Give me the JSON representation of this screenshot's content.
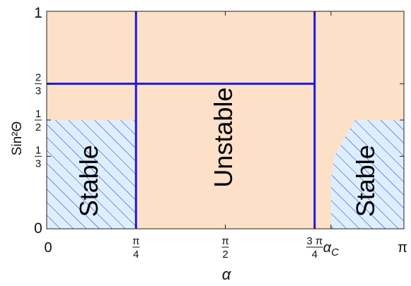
{
  "chart_data": {
    "type": "area",
    "title": "",
    "xlabel": "α",
    "ylabel": "Sin²Θ",
    "xlim": [
      0,
      3.14159
    ],
    "ylim": [
      0,
      1
    ],
    "grid": false,
    "x_ticks": [
      {
        "value": 0,
        "num": "0",
        "den": ""
      },
      {
        "value": 0.7854,
        "num": "π",
        "den": "4"
      },
      {
        "value": 1.5708,
        "num": "π",
        "den": "2"
      },
      {
        "value": 2.3562,
        "num": "3 π",
        "den": "4"
      },
      {
        "value": 2.5,
        "num": "α",
        "den": "",
        "sub": "C"
      },
      {
        "value": 3.14159,
        "num": "π",
        "den": ""
      }
    ],
    "y_ticks": [
      {
        "value": 0,
        "num": "0",
        "den": ""
      },
      {
        "value": 0.3333,
        "num": "1",
        "den": "3"
      },
      {
        "value": 0.5,
        "num": "1",
        "den": "2"
      },
      {
        "value": 0.6667,
        "num": "2",
        "den": "3"
      },
      {
        "value": 1,
        "num": "1",
        "den": ""
      }
    ],
    "background_color": "#fde0c8",
    "stable_fill": "#ddeeff",
    "hatch_color": "#1a2ccf",
    "line_color": "#1a1adc",
    "regions": [
      {
        "label": "Stable",
        "kind": "stable",
        "points": [
          [
            0,
            0
          ],
          [
            0.7854,
            0
          ],
          [
            0.7854,
            0.5
          ],
          [
            0,
            0.5
          ]
        ]
      },
      {
        "label": "Unstable",
        "kind": "unstable"
      },
      {
        "label": "Stable",
        "kind": "stable",
        "points": [
          [
            2.5,
            0
          ],
          [
            3.14159,
            0
          ],
          [
            3.14159,
            0.5
          ],
          [
            2.71,
            0.5
          ],
          [
            2.6,
            0.4
          ],
          [
            2.53,
            0.33
          ],
          [
            2.5,
            0.22
          ]
        ]
      }
    ],
    "lines": [
      {
        "orientation": "vertical",
        "value": 0.7854,
        "from": 0,
        "to": 1
      },
      {
        "orientation": "vertical",
        "value": 2.3562,
        "from": 0,
        "to": 1
      },
      {
        "orientation": "horizontal",
        "value": 0.6667,
        "from": 0,
        "to": 2.3562
      }
    ]
  }
}
